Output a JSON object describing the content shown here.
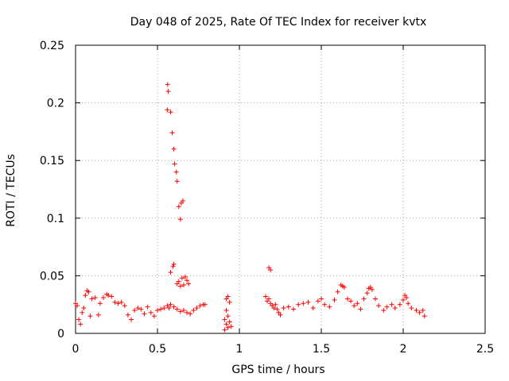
{
  "chart_data": {
    "type": "scatter",
    "title": "Day 048 of 2025, Rate Of TEC Index for receiver kvtx",
    "xlabel": "GPS time / hours",
    "ylabel": "ROTI / TECUs",
    "xlim": [
      0,
      2.5
    ],
    "ylim": [
      0,
      0.25
    ],
    "x_ticks": [
      0,
      0.5,
      1,
      1.5,
      2,
      2.5
    ],
    "x_tick_labels": [
      "0",
      "0.5",
      "1",
      "1.5",
      "2",
      "2.5"
    ],
    "y_ticks": [
      0,
      0.05,
      0.1,
      0.15,
      0.2,
      0.25
    ],
    "y_tick_labels": [
      "0",
      "0.05",
      "0.1",
      "0.15",
      "0.2",
      "0.25"
    ],
    "grid": true,
    "marker": "plus",
    "color": "#ff0000",
    "series": [
      {
        "values": [
          [
            0.0,
            0.026
          ],
          [
            0.01,
            0.024
          ],
          [
            0.02,
            0.012
          ],
          [
            0.03,
            0.008
          ],
          [
            0.04,
            0.018
          ],
          [
            0.05,
            0.022
          ],
          [
            0.06,
            0.033
          ],
          [
            0.07,
            0.037
          ],
          [
            0.08,
            0.036
          ],
          [
            0.09,
            0.015
          ],
          [
            0.1,
            0.03
          ],
          [
            0.12,
            0.031
          ],
          [
            0.14,
            0.016
          ],
          [
            0.15,
            0.026
          ],
          [
            0.17,
            0.031
          ],
          [
            0.19,
            0.034
          ],
          [
            0.2,
            0.033
          ],
          [
            0.22,
            0.032
          ],
          [
            0.24,
            0.027
          ],
          [
            0.26,
            0.026
          ],
          [
            0.28,
            0.027
          ],
          [
            0.3,
            0.024
          ],
          [
            0.32,
            0.016
          ],
          [
            0.34,
            0.012
          ],
          [
            0.36,
            0.02
          ],
          [
            0.38,
            0.022
          ],
          [
            0.4,
            0.021
          ],
          [
            0.42,
            0.017
          ],
          [
            0.44,
            0.023
          ],
          [
            0.46,
            0.018
          ],
          [
            0.48,
            0.015
          ],
          [
            0.5,
            0.02
          ],
          [
            0.52,
            0.021
          ],
          [
            0.54,
            0.022
          ],
          [
            0.56,
            0.024
          ],
          [
            0.57,
            0.022
          ],
          [
            0.58,
            0.025
          ],
          [
            0.6,
            0.023
          ],
          [
            0.62,
            0.021
          ],
          [
            0.64,
            0.019
          ],
          [
            0.66,
            0.02
          ],
          [
            0.68,
            0.018
          ],
          [
            0.7,
            0.017
          ],
          [
            0.72,
            0.02
          ],
          [
            0.74,
            0.022
          ],
          [
            0.76,
            0.024
          ],
          [
            0.78,
            0.025
          ],
          [
            0.79,
            0.025
          ],
          [
            0.562,
            0.216
          ],
          [
            0.566,
            0.21
          ],
          [
            0.56,
            0.194
          ],
          [
            0.58,
            0.192
          ],
          [
            0.59,
            0.174
          ],
          [
            0.6,
            0.16
          ],
          [
            0.605,
            0.147
          ],
          [
            0.615,
            0.14
          ],
          [
            0.62,
            0.132
          ],
          [
            0.63,
            0.11
          ],
          [
            0.64,
            0.099
          ],
          [
            0.645,
            0.113
          ],
          [
            0.655,
            0.115
          ],
          [
            0.6,
            0.06
          ],
          [
            0.595,
            0.058
          ],
          [
            0.58,
            0.053
          ],
          [
            0.62,
            0.043
          ],
          [
            0.63,
            0.045
          ],
          [
            0.64,
            0.041
          ],
          [
            0.65,
            0.048
          ],
          [
            0.66,
            0.042
          ],
          [
            0.67,
            0.049
          ],
          [
            0.68,
            0.046
          ],
          [
            0.69,
            0.043
          ],
          [
            0.92,
            0.03
          ],
          [
            0.93,
            0.032
          ],
          [
            0.94,
            0.027
          ],
          [
            0.92,
            0.02
          ],
          [
            0.93,
            0.015
          ],
          [
            0.91,
            0.012
          ],
          [
            0.92,
            0.008
          ],
          [
            0.93,
            0.005
          ],
          [
            0.94,
            0.01
          ],
          [
            0.91,
            0.003
          ],
          [
            0.95,
            0.006
          ],
          [
            1.16,
            0.032
          ],
          [
            1.17,
            0.028
          ],
          [
            1.18,
            0.03
          ],
          [
            1.19,
            0.026
          ],
          [
            1.2,
            0.024
          ],
          [
            1.21,
            0.022
          ],
          [
            1.22,
            0.025
          ],
          [
            1.23,
            0.021
          ],
          [
            1.24,
            0.018
          ],
          [
            1.18,
            0.057
          ],
          [
            1.19,
            0.055
          ],
          [
            1.25,
            0.016
          ],
          [
            1.27,
            0.022
          ],
          [
            1.3,
            0.023
          ],
          [
            1.33,
            0.021
          ],
          [
            1.36,
            0.025
          ],
          [
            1.39,
            0.026
          ],
          [
            1.42,
            0.027
          ],
          [
            1.45,
            0.022
          ],
          [
            1.48,
            0.028
          ],
          [
            1.5,
            0.03
          ],
          [
            1.52,
            0.025
          ],
          [
            1.55,
            0.023
          ],
          [
            1.58,
            0.029
          ],
          [
            1.6,
            0.036
          ],
          [
            1.62,
            0.042
          ],
          [
            1.63,
            0.041
          ],
          [
            1.64,
            0.04
          ],
          [
            1.66,
            0.03
          ],
          [
            1.68,
            0.028
          ],
          [
            1.7,
            0.024
          ],
          [
            1.72,
            0.026
          ],
          [
            1.74,
            0.021
          ],
          [
            1.76,
            0.03
          ],
          [
            1.78,
            0.035
          ],
          [
            1.79,
            0.039
          ],
          [
            1.8,
            0.04
          ],
          [
            1.81,
            0.038
          ],
          [
            1.83,
            0.03
          ],
          [
            1.85,
            0.024
          ],
          [
            1.88,
            0.02
          ],
          [
            1.9,
            0.023
          ],
          [
            1.93,
            0.025
          ],
          [
            1.95,
            0.022
          ],
          [
            1.98,
            0.025
          ],
          [
            2.0,
            0.029
          ],
          [
            2.01,
            0.033
          ],
          [
            2.02,
            0.031
          ],
          [
            2.03,
            0.026
          ],
          [
            2.05,
            0.022
          ],
          [
            2.08,
            0.02
          ],
          [
            2.1,
            0.018
          ],
          [
            2.12,
            0.02
          ],
          [
            2.13,
            0.015
          ]
        ]
      }
    ]
  }
}
